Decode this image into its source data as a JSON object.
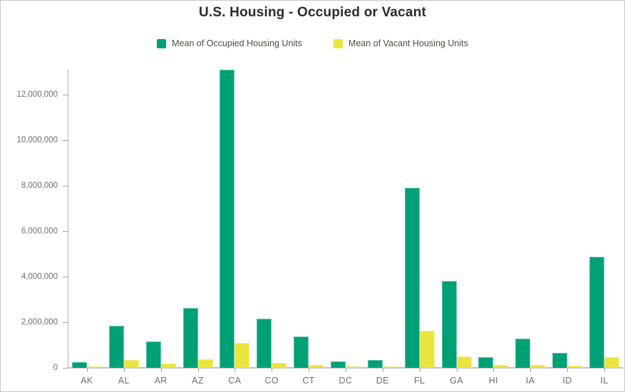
{
  "header": {
    "title": "U.S. Housing - Occupied or Vacant"
  },
  "legend": {
    "items": [
      {
        "label": "Mean of Occupied Housing Units",
        "color": "#00a077",
        "edge": "#5ec5a5"
      },
      {
        "label": "Mean of Vacant Housing Units",
        "color": "#ece43e",
        "edge": "#f3ee82"
      }
    ]
  },
  "axis_style": {
    "text_color": "#6e6e6e",
    "line_color": "#b3b3b3"
  },
  "chart_data": {
    "type": "bar",
    "title": "U.S. Housing - Occupied or Vacant",
    "xlabel": "",
    "ylabel": "",
    "grid": false,
    "legend_position": "top",
    "categories": [
      "AK",
      "AL",
      "AR",
      "AZ",
      "CA",
      "CO",
      "CT",
      "DC",
      "DE",
      "FL",
      "GA",
      "HI",
      "IA",
      "ID",
      "IL"
    ],
    "series": [
      {
        "name": "Mean of Occupied Housing Units",
        "color": "#00a077",
        "edge": "#5ec5a5",
        "values": [
          260000,
          1860000,
          1170000,
          2640000,
          13100000,
          2150000,
          1390000,
          290000,
          360000,
          7920000,
          3820000,
          460000,
          1280000,
          670000,
          4860000
        ]
      },
      {
        "name": "Mean of Vacant Housing Units",
        "color": "#ece43e",
        "edge": "#f3ee82",
        "values": [
          60000,
          360000,
          200000,
          380000,
          1100000,
          230000,
          140000,
          50000,
          70000,
          1630000,
          510000,
          120000,
          140000,
          90000,
          460000
        ]
      }
    ],
    "ylim": [
      0,
      13125000
    ],
    "y_ticks": [
      {
        "value": 0,
        "label": "0"
      },
      {
        "value": 2000000,
        "label": "2,000,000"
      },
      {
        "value": 4000000,
        "label": "4,000,000"
      },
      {
        "value": 6000000,
        "label": "6,000,000"
      },
      {
        "value": 8000000,
        "label": "8,000,000"
      },
      {
        "value": 10000000,
        "label": "10,000,000"
      },
      {
        "value": 12000000,
        "label": "12,000,000"
      }
    ]
  }
}
